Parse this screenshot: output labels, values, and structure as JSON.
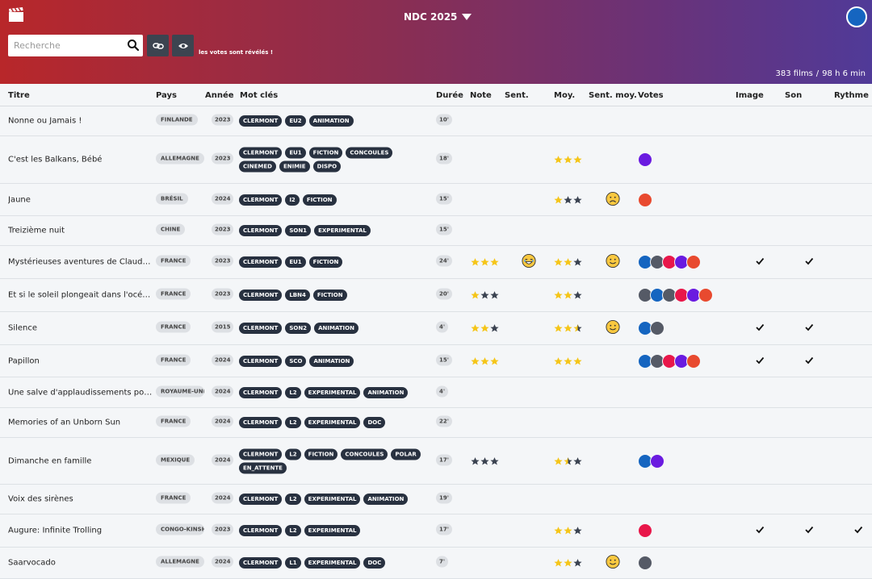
{
  "header": {
    "app_title": "NDC 2025",
    "search_placeholder": "Recherche",
    "reveal_note": "les votes sont révélés !",
    "film_count": "383 films",
    "separator": "/",
    "total_duration": "98 h 6 min"
  },
  "columns": {
    "titre": "Titre",
    "pays": "Pays",
    "annee": "Année",
    "mots_cles": "Mot clés",
    "duree": "Durée",
    "note": "Note",
    "sent": "Sent.",
    "moy": "Moy.",
    "sent_moy": "Sent. moy.",
    "votes": "Votes",
    "image": "Image",
    "son": "Son",
    "rythme": "Rythme"
  },
  "colors": {
    "star_filled": "#f5c518",
    "star_empty": "#3a4250",
    "tag_bg": "#283140",
    "header_left": "#b8272a",
    "header_right": "#503a98"
  },
  "films": [
    {
      "title": "Nonne ou Jamais !",
      "country": "FINLANDE",
      "year": "2023",
      "tags": [
        "CLERMONT",
        "EU2",
        "ANIMATION"
      ],
      "duration": "10'",
      "note": null,
      "sent": null,
      "moy": null,
      "sent_moy": null,
      "votes": [],
      "image": false,
      "son": false,
      "rythme": false
    },
    {
      "title": "C'est les Balkans, Bébé",
      "country": "ALLEMAGNE",
      "year": "2023",
      "tags": [
        "CLERMONT",
        "EU1",
        "FICTION",
        "CONCOULES",
        "CINEMED",
        "ENIMIE",
        "DISPO"
      ],
      "duration": "18'",
      "note": null,
      "sent": null,
      "moy": 3,
      "sent_moy": null,
      "votes": [
        "#6a1be0"
      ],
      "image": false,
      "son": false,
      "rythme": false
    },
    {
      "title": "Jaune",
      "country": "BRÉSIL",
      "year": "2024",
      "tags": [
        "CLERMONT",
        "I2",
        "FICTION"
      ],
      "duration": "15'",
      "note": null,
      "sent": null,
      "moy": 1,
      "sent_moy": "sad",
      "votes": [
        "#e84a2f"
      ],
      "image": false,
      "son": false,
      "rythme": false
    },
    {
      "title": "Treizième nuit",
      "country": "CHINE",
      "year": "2023",
      "tags": [
        "CLERMONT",
        "SON1",
        "EXPERIMENTAL"
      ],
      "duration": "15'",
      "note": null,
      "sent": null,
      "moy": null,
      "sent_moy": null,
      "votes": [],
      "image": false,
      "son": false,
      "rythme": false
    },
    {
      "title": "Mystérieuses aventures de Claude Conseil",
      "country": "FRANCE",
      "year": "2023",
      "tags": [
        "CLERMONT",
        "EU1",
        "FICTION"
      ],
      "duration": "24'",
      "note": 3,
      "sent": "laugh",
      "moy": 2,
      "sent_moy": "smile",
      "votes": [
        "#1565c0",
        "#555a66",
        "#e8174a",
        "#6a1be0",
        "#e84a2f"
      ],
      "image": true,
      "son": true,
      "rythme": false
    },
    {
      "title": "Et si le soleil plongeait dans l'océan des nuages",
      "country": "FRANCE",
      "year": "2023",
      "tags": [
        "CLERMONT",
        "LBN4",
        "FICTION"
      ],
      "duration": "20'",
      "note": 1,
      "sent": null,
      "moy": 2,
      "sent_moy": null,
      "votes": [
        "#555a66",
        "#1565c0",
        "#555a66",
        "#e8174a",
        "#6a1be0",
        "#e84a2f"
      ],
      "image": false,
      "son": false,
      "rythme": false
    },
    {
      "title": "Silence",
      "country": "FRANCE",
      "year": "2015",
      "tags": [
        "CLERMONT",
        "SON2",
        "ANIMATION"
      ],
      "duration": "4'",
      "note": 2,
      "sent": null,
      "moy": 2.5,
      "sent_moy": "smile",
      "votes": [
        "#1565c0",
        "#555a66"
      ],
      "image": true,
      "son": true,
      "rythme": false
    },
    {
      "title": "Papillon",
      "country": "FRANCE",
      "year": "2024",
      "tags": [
        "CLERMONT",
        "SCO",
        "ANIMATION"
      ],
      "duration": "15'",
      "note": 3,
      "sent": null,
      "moy": 3,
      "sent_moy": null,
      "votes": [
        "#1565c0",
        "#555a66",
        "#e8174a",
        "#6a1be0",
        "#e84a2f"
      ],
      "image": true,
      "son": true,
      "rythme": false
    },
    {
      "title": "Une salve d'applaudissements pour la fin du monde",
      "country": "ROYAUME-UNI",
      "year": "2024",
      "tags": [
        "CLERMONT",
        "L2",
        "EXPERIMENTAL",
        "ANIMATION"
      ],
      "duration": "4'",
      "note": null,
      "sent": null,
      "moy": null,
      "sent_moy": null,
      "votes": [],
      "image": false,
      "son": false,
      "rythme": false
    },
    {
      "title": "Memories of an Unborn Sun",
      "country": "FRANCE",
      "year": "2024",
      "tags": [
        "CLERMONT",
        "L2",
        "EXPERIMENTAL",
        "DOC"
      ],
      "duration": "22'",
      "note": null,
      "sent": null,
      "moy": null,
      "sent_moy": null,
      "votes": [],
      "image": false,
      "son": false,
      "rythme": false
    },
    {
      "title": "Dimanche en famille",
      "country": "MEXIQUE",
      "year": "2024",
      "tags": [
        "CLERMONT",
        "L2",
        "FICTION",
        "CONCOULES",
        "POLAR",
        "EN_ATTENTE"
      ],
      "duration": "17'",
      "note": 0,
      "sent": null,
      "moy": 1.5,
      "sent_moy": null,
      "votes": [
        "#1565c0",
        "#6a1be0"
      ],
      "image": false,
      "son": false,
      "rythme": false
    },
    {
      "title": "Voix des sirènes",
      "country": "FRANCE",
      "year": "2024",
      "tags": [
        "CLERMONT",
        "L2",
        "EXPERIMENTAL",
        "ANIMATION"
      ],
      "duration": "19'",
      "note": null,
      "sent": null,
      "moy": null,
      "sent_moy": null,
      "votes": [],
      "image": false,
      "son": false,
      "rythme": false
    },
    {
      "title": "Augure: Infinite Trolling",
      "country": "CONGO-KINSHASA",
      "year": "2023",
      "tags": [
        "CLERMONT",
        "L2",
        "EXPERIMENTAL"
      ],
      "duration": "17'",
      "note": null,
      "sent": null,
      "moy": 2,
      "sent_moy": null,
      "votes": [
        "#e8174a"
      ],
      "image": true,
      "son": true,
      "rythme": true
    },
    {
      "title": "Saarvocado",
      "country": "ALLEMAGNE",
      "year": "2024",
      "tags": [
        "CLERMONT",
        "L1",
        "EXPERIMENTAL",
        "DOC"
      ],
      "duration": "7'",
      "note": null,
      "sent": null,
      "moy": 2,
      "sent_moy": "smile",
      "votes": [
        "#555a66"
      ],
      "image": false,
      "son": false,
      "rythme": false
    }
  ]
}
